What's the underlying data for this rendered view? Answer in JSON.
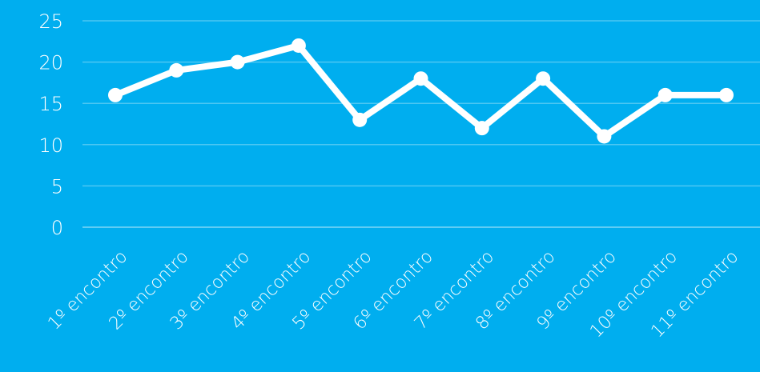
{
  "chart_data": {
    "type": "line",
    "categories": [
      "1º encontro",
      "2º encontro",
      "3º encontro",
      "4º encontro",
      "5º encontro",
      "6º encontro",
      "7º encontro",
      "8º encontro",
      "9º encontro",
      "10º encontro",
      "11º encontro"
    ],
    "series": [
      {
        "values": [
          16,
          19,
          20,
          22,
          13,
          18,
          12,
          18,
          11,
          16,
          16
        ]
      }
    ],
    "y_ticks": [
      "0",
      "5",
      "10",
      "15",
      "20",
      "25"
    ],
    "ylim": [
      0,
      25
    ],
    "grid": true,
    "legend": "none",
    "colors": {
      "background": "#00AEEF",
      "line": "#FFFFFF",
      "grid": "#4CC6F2",
      "text": "#FFFFFF"
    }
  }
}
